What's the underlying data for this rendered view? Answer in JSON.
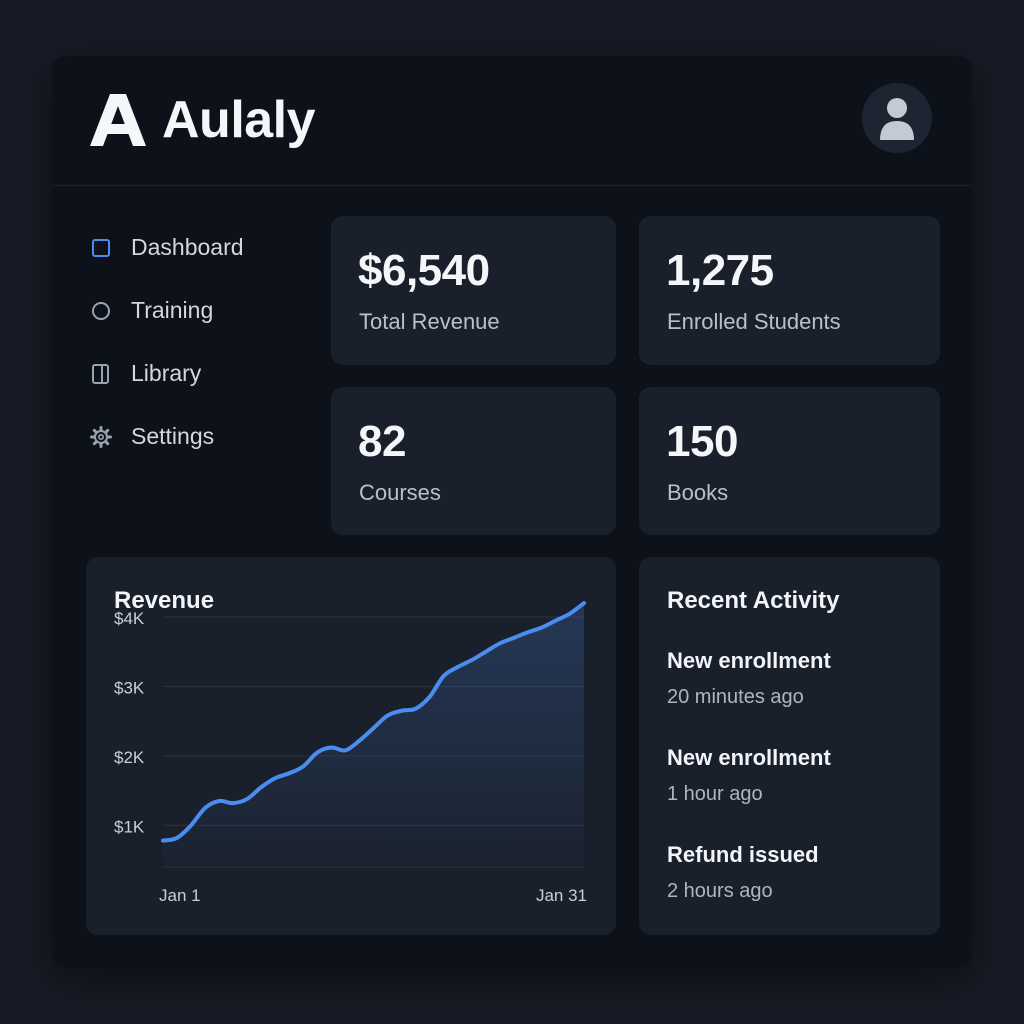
{
  "app": {
    "name": "Aulaly"
  },
  "colors": {
    "accent": "#4a8df0",
    "background": "#0d1119",
    "card": "#1a202b"
  },
  "header": {
    "avatar_icon": "user-avatar-icon"
  },
  "sidebar": {
    "items": [
      {
        "label": "Dashboard",
        "icon": "dashboard-square-icon",
        "active": true
      },
      {
        "label": "Training",
        "icon": "circle-icon",
        "active": false
      },
      {
        "label": "Library",
        "icon": "book-icon",
        "active": false
      },
      {
        "label": "Settings",
        "icon": "gear-icon",
        "active": false
      }
    ]
  },
  "stats": [
    {
      "value": "$6,540",
      "label": "Total Revenue"
    },
    {
      "value": "1,275",
      "label": "Enrolled Students"
    },
    {
      "value": "82",
      "label": "Courses"
    },
    {
      "value": "150",
      "label": "Books"
    }
  ],
  "revenue": {
    "title": "Revenue",
    "chart_data": {
      "type": "area",
      "title": "Revenue",
      "x_range": [
        "Jan 1",
        "Jan 31"
      ],
      "x_tick_labels": [
        "Jan 1",
        "Jan 31"
      ],
      "y_tick_labels": [
        "$4K",
        "$3K",
        "$2K",
        "$1K"
      ],
      "y_ticks": [
        4000,
        3000,
        2000,
        1000
      ],
      "ylim": [
        400,
        4000
      ],
      "grid": true,
      "series": [
        {
          "day": [
            1,
            2,
            3,
            4,
            5,
            6,
            7,
            8,
            9,
            10,
            11,
            12,
            13,
            14,
            15,
            16,
            17,
            18,
            19,
            20,
            21,
            22,
            23,
            24,
            25,
            26,
            27,
            28,
            29,
            30,
            31
          ],
          "values": [
            780,
            820,
            1000,
            1250,
            1350,
            1320,
            1380,
            1550,
            1680,
            1750,
            1850,
            2050,
            2120,
            2080,
            2220,
            2400,
            2580,
            2650,
            2680,
            2850,
            3150,
            3280,
            3380,
            3500,
            3620,
            3700,
            3780,
            3850,
            3950,
            4050,
            4200
          ]
        }
      ]
    }
  },
  "activity": {
    "title": "Recent Activity",
    "items": [
      {
        "title": "New enrollment",
        "time": "20 minutes ago"
      },
      {
        "title": "New enrollment",
        "time": "1 hour ago"
      },
      {
        "title": "Refund issued",
        "time": "2 hours ago"
      }
    ]
  }
}
